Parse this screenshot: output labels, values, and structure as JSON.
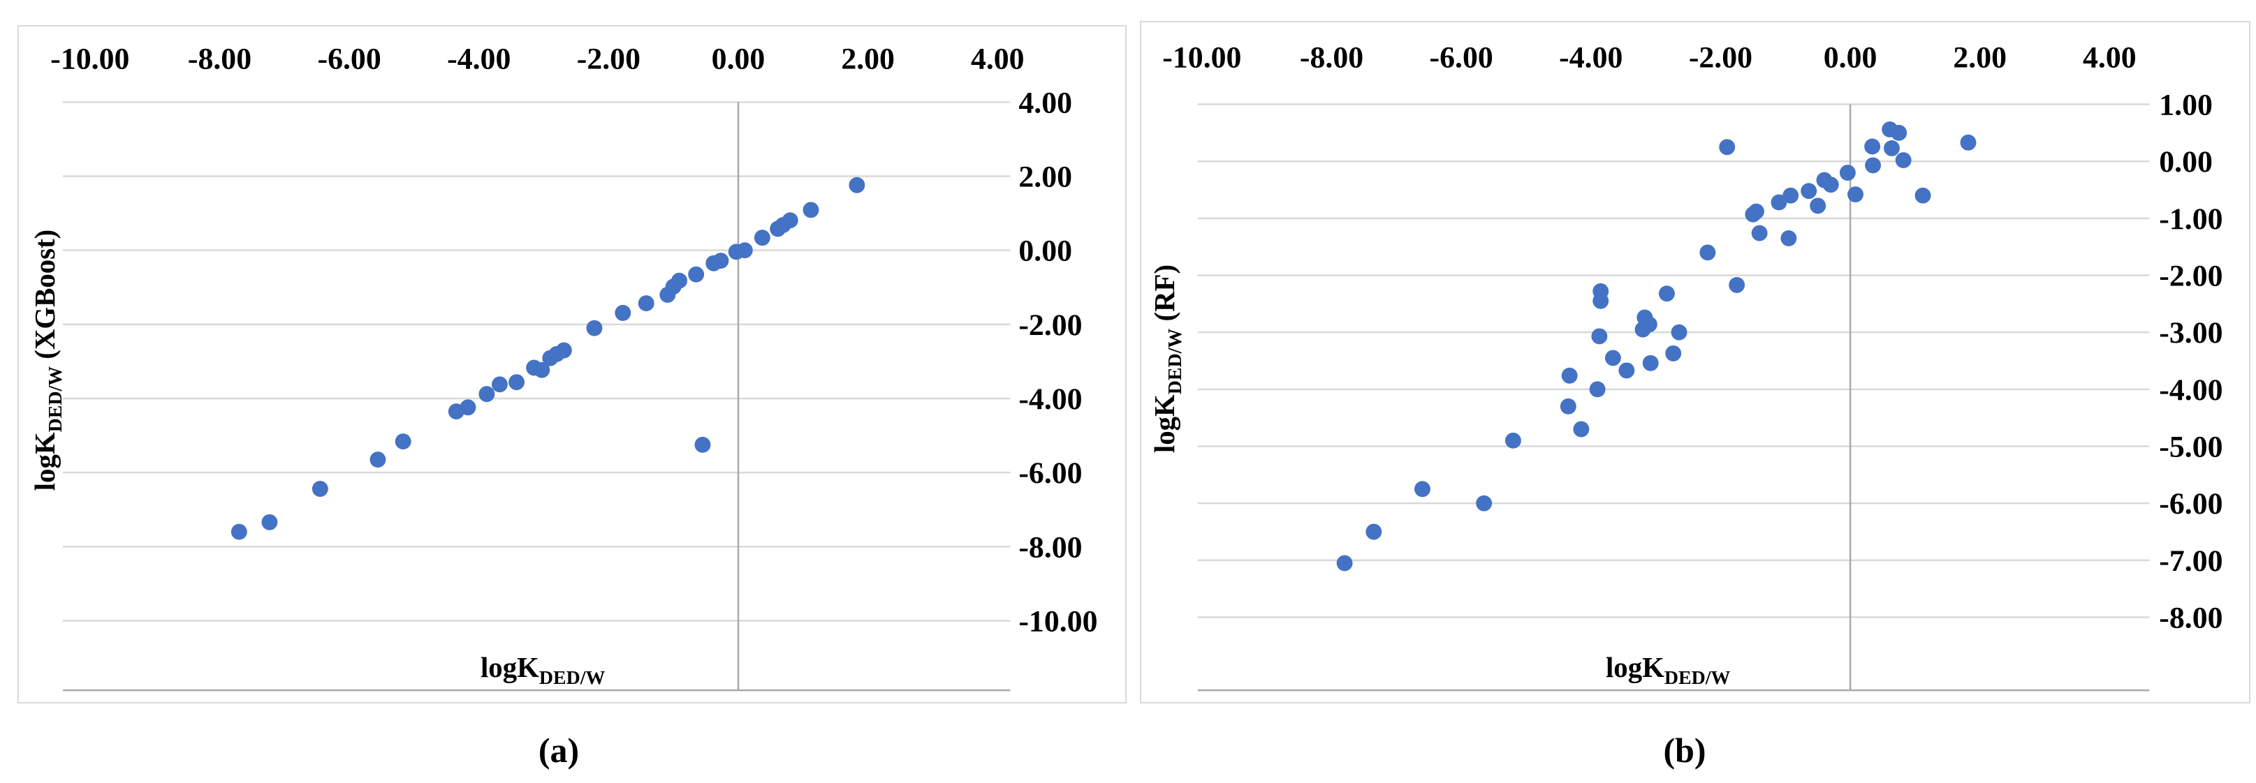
{
  "figure": {
    "captions": [
      "(a)",
      "(b)"
    ],
    "colors": {
      "dot": "#4472C4",
      "gridline": "#D9D9D9",
      "axis_line": "#A9A9A9",
      "panel_border": "#D9D9D9",
      "text": "#000000"
    }
  },
  "chart_data": [
    {
      "type": "scatter",
      "name": "parity-plot-xgboost",
      "title": "",
      "xlabel": {
        "main": "logK",
        "sub": "DED/W",
        "suffix": ""
      },
      "ylabel": {
        "main": "logK",
        "sub": "DED/W",
        "suffix": " (XGBoost)"
      },
      "x_ticks": {
        "values": [
          -10,
          -8,
          -6,
          -4,
          -2,
          0,
          2,
          4
        ],
        "labels": [
          "-10.00",
          "-8.00",
          "-6.00",
          "-4.00",
          "-2.00",
          "0.00",
          "2.00",
          "4.00"
        ]
      },
      "y_ticks": {
        "values": [
          4,
          2,
          0,
          -2,
          -4,
          -6,
          -8,
          -10
        ],
        "labels": [
          "4.00",
          "2.00",
          "0.00",
          "-2.00",
          "-4.00",
          "-6.00",
          "-8.00",
          "-10.00"
        ]
      },
      "xlim": [
        -11.1,
        4.3
      ],
      "ylim": [
        -11.9,
        4.5
      ],
      "grid": true,
      "legend": "none",
      "points": [
        [
          -7.7,
          -7.6
        ],
        [
          -7.23,
          -7.34
        ],
        [
          -6.45,
          -6.44
        ],
        [
          -5.56,
          -5.65
        ],
        [
          -5.17,
          -5.16
        ],
        [
          -4.35,
          -4.35
        ],
        [
          -4.17,
          -4.24
        ],
        [
          -3.88,
          -3.88
        ],
        [
          -3.68,
          -3.62
        ],
        [
          -3.42,
          -3.56
        ],
        [
          -3.15,
          -3.17
        ],
        [
          -3.03,
          -3.23
        ],
        [
          -2.9,
          -2.91
        ],
        [
          -2.8,
          -2.8
        ],
        [
          -2.69,
          -2.7
        ],
        [
          -2.22,
          -2.1
        ],
        [
          -1.78,
          -1.69
        ],
        [
          -1.42,
          -1.43
        ],
        [
          -1.09,
          -1.2
        ],
        [
          -1.0,
          -0.98
        ],
        [
          -0.91,
          -0.82
        ],
        [
          -0.65,
          -0.65
        ],
        [
          -0.38,
          -0.35
        ],
        [
          -0.27,
          -0.28
        ],
        [
          -0.03,
          -0.04
        ],
        [
          0.1,
          0.0
        ],
        [
          0.37,
          0.34
        ],
        [
          0.61,
          0.58
        ],
        [
          0.69,
          0.68
        ],
        [
          0.8,
          0.81
        ],
        [
          1.12,
          1.09
        ],
        [
          1.83,
          1.76
        ],
        [
          -0.55,
          -5.25
        ]
      ]
    },
    {
      "type": "scatter",
      "name": "parity-plot-rf",
      "title": "",
      "xlabel": {
        "main": "logK",
        "sub": "DED/W",
        "suffix": ""
      },
      "ylabel": {
        "main": "logK",
        "sub": "DED/W",
        "suffix": " (RF)"
      },
      "x_ticks": {
        "values": [
          -10,
          -8,
          -6,
          -4,
          -2,
          0,
          2,
          4
        ],
        "labels": [
          "-10.00",
          "-8.00",
          "-6.00",
          "-4.00",
          "-2.00",
          "0.00",
          "2.00",
          "4.00"
        ]
      },
      "y_ticks": {
        "values": [
          1,
          0,
          -1,
          -2,
          -3,
          -4,
          -5,
          -6,
          -7,
          -8
        ],
        "labels": [
          "1.00",
          "0.00",
          "-1.00",
          "-2.00",
          "-3.00",
          "-4.00",
          "-5.00",
          "-6.00",
          "-7.00",
          "-8.00"
        ]
      },
      "xlim": [
        -11.0,
        4.6
      ],
      "ylim": [
        -9.3,
        1.4
      ],
      "grid": true,
      "legend": "none",
      "points": [
        [
          -7.8,
          -7.05
        ],
        [
          -7.35,
          -6.5
        ],
        [
          -6.6,
          -5.75
        ],
        [
          -5.65,
          -6.0
        ],
        [
          -5.2,
          -4.9
        ],
        [
          -4.35,
          -4.3
        ],
        [
          -4.33,
          -3.76
        ],
        [
          -4.15,
          -4.7
        ],
        [
          -3.9,
          -4.0
        ],
        [
          -3.85,
          -2.28
        ],
        [
          -3.85,
          -2.45
        ],
        [
          -3.87,
          -3.07
        ],
        [
          -3.66,
          -3.45
        ],
        [
          -3.45,
          -3.67
        ],
        [
          -3.17,
          -2.74
        ],
        [
          -3.1,
          -2.86
        ],
        [
          -3.2,
          -2.95
        ],
        [
          -3.08,
          -3.54
        ],
        [
          -2.73,
          -3.37
        ],
        [
          -2.83,
          -2.32
        ],
        [
          -2.64,
          -3.0
        ],
        [
          -2.2,
          -1.6
        ],
        [
          -1.75,
          -2.17
        ],
        [
          -1.4,
          -1.26
        ],
        [
          -0.95,
          -1.35
        ],
        [
          -1.9,
          0.25
        ],
        [
          -1.5,
          -0.93
        ],
        [
          -1.45,
          -0.88
        ],
        [
          -1.1,
          -0.72
        ],
        [
          -0.92,
          -0.6
        ],
        [
          -0.64,
          -0.52
        ],
        [
          -0.5,
          -0.78
        ],
        [
          -0.4,
          -0.33
        ],
        [
          -0.3,
          -0.41
        ],
        [
          -0.04,
          -0.2
        ],
        [
          0.08,
          -0.58
        ],
        [
          0.34,
          0.26
        ],
        [
          0.35,
          -0.07
        ],
        [
          0.61,
          0.56
        ],
        [
          0.75,
          0.5
        ],
        [
          0.64,
          0.23
        ],
        [
          0.82,
          0.02
        ],
        [
          1.12,
          -0.6
        ],
        [
          1.82,
          0.33
        ]
      ]
    }
  ]
}
